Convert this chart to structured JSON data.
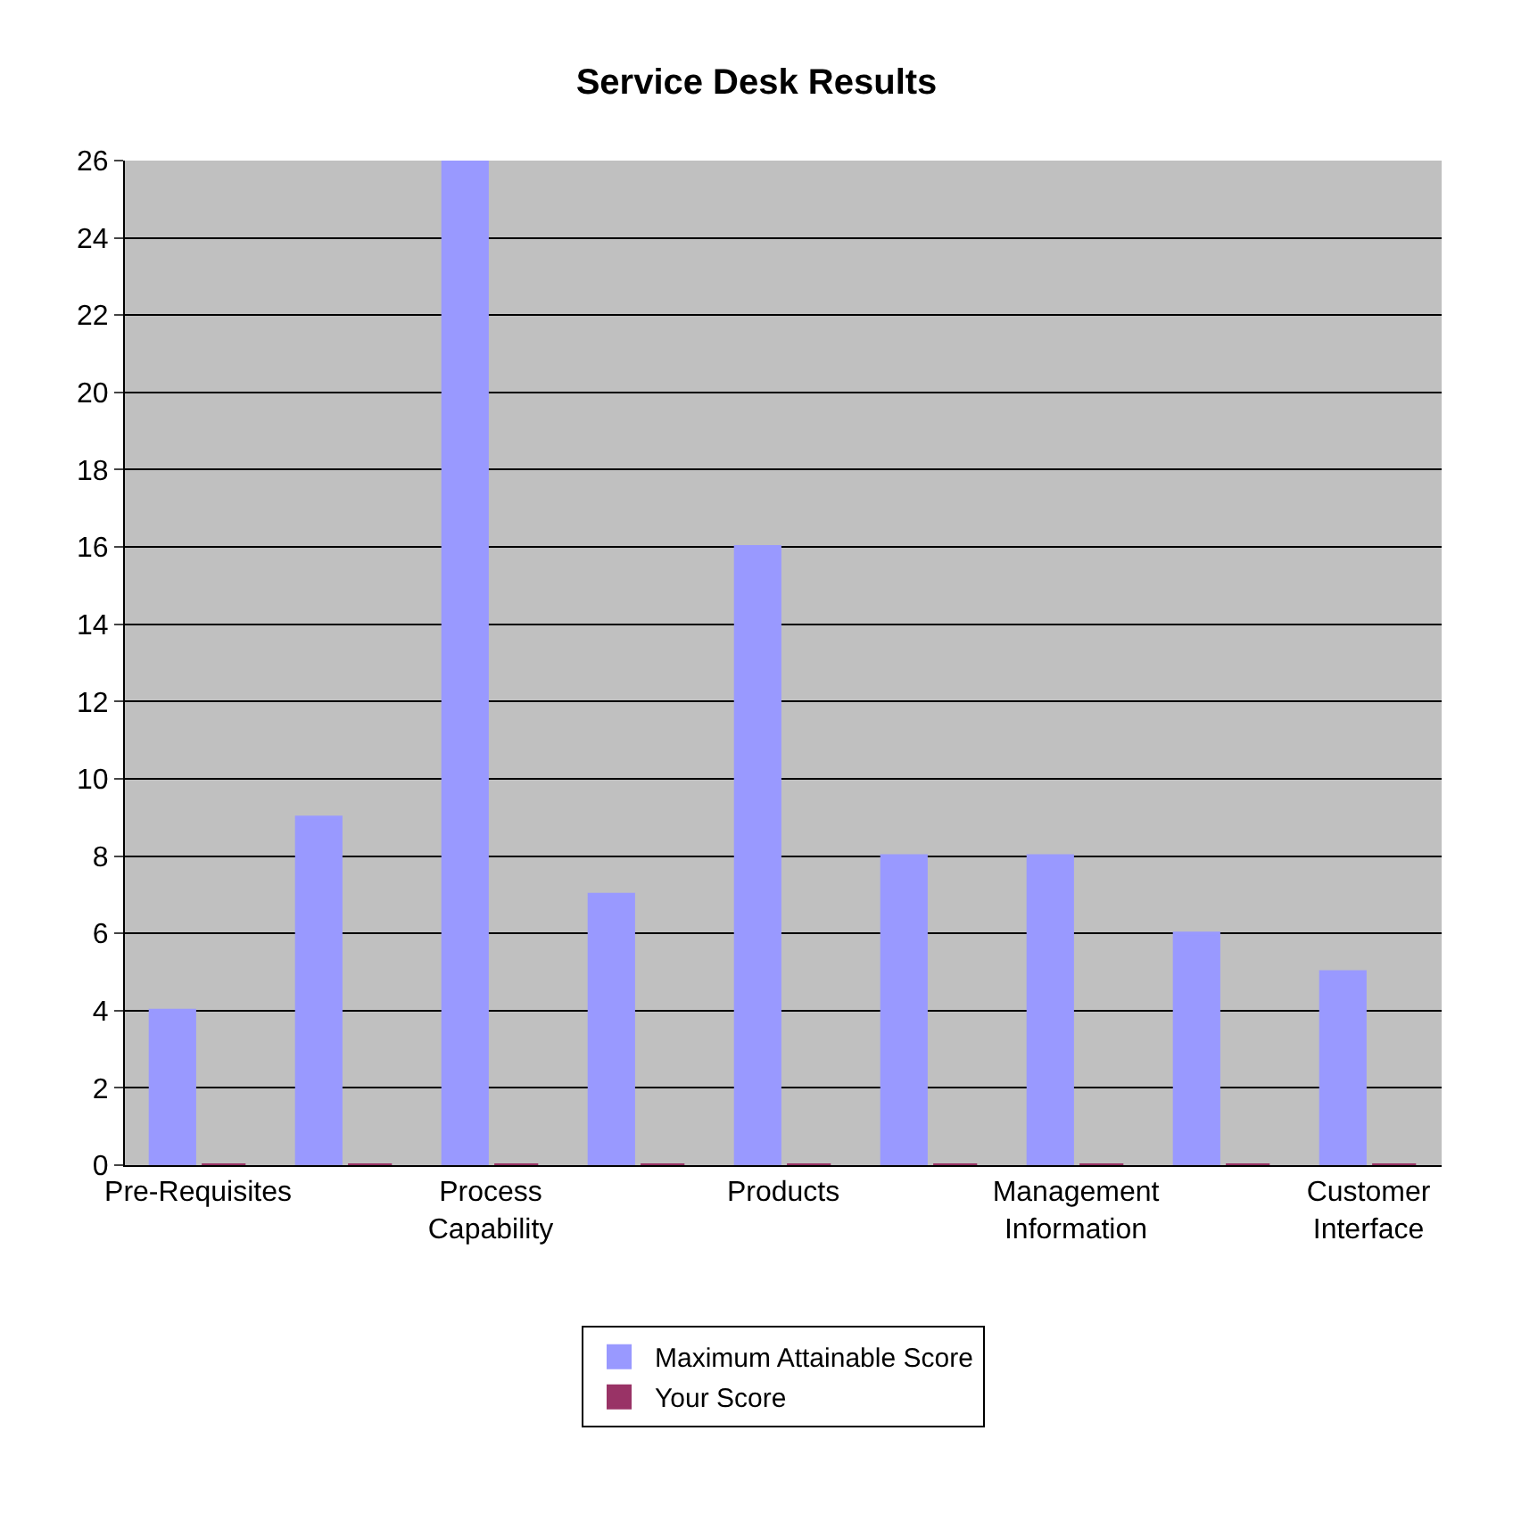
{
  "chart_data": {
    "type": "bar",
    "title": "Service Desk Results",
    "categories": [
      "Pre-Requisites",
      null,
      "Process Capability",
      null,
      "Products",
      null,
      "Management Information",
      null,
      "Customer Interface"
    ],
    "series": [
      {
        "name": "Maximum Attainable Score",
        "color": "#9999ff",
        "values": [
          4,
          9,
          26,
          7,
          16,
          8,
          8,
          6,
          5
        ]
      },
      {
        "name": "Your Score",
        "color": "#993366",
        "values": [
          0,
          0,
          0,
          0,
          0,
          0,
          0,
          0,
          0
        ]
      }
    ],
    "ylim": [
      0,
      26
    ],
    "yticks": [
      0,
      2,
      4,
      6,
      8,
      10,
      12,
      14,
      16,
      18,
      20,
      22,
      24,
      26
    ],
    "grid": "y",
    "legend": "bottom"
  }
}
